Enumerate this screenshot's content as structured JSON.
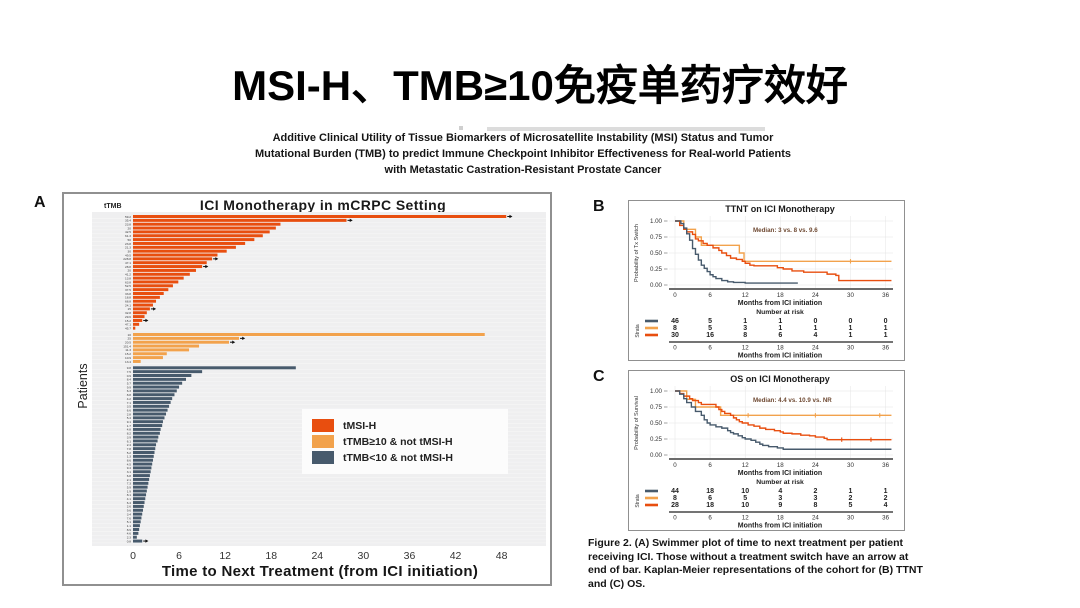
{
  "slide": {
    "title": "MSI-H、TMB≥10免疫单药疗效好"
  },
  "paper_title": {
    "lines": [
      "Additive Clinical Utility of Tissue Biomarkers of Microsatellite Instability (MSI) Status and Tumor",
      "Mutational Burden (TMB) to predict Immune Checkpoint Inhibitor Effectiveness for Real-world Patients",
      "with Metastatic Castration-Resistant Prostate Cancer"
    ]
  },
  "figure": {
    "panel_labels": [
      "A",
      "B",
      "C"
    ],
    "caption_label": "Figure 2.",
    "caption_text": " (A) Swimmer plot of time to next treatment per patient receiving ICI. Those without a treatment switch have an arrow at end of bar. Kaplan-Meier representations of the cohort for (B) TTNT and (C) OS."
  },
  "chart_data": [
    {
      "id": "swimmer",
      "type": "bar",
      "orientation": "horizontal",
      "title": "ICI Monotherapy in mCRPC Setting",
      "col_header": "tTMB",
      "xlabel": "Time to Next Treatment (from ICI initiation)",
      "ylabel": "Patients",
      "xlim": [
        0,
        50
      ],
      "xticks": [
        0,
        6,
        12,
        18,
        24,
        30,
        36,
        42,
        48
      ],
      "legend": [
        {
          "label": "tMSI-H",
          "color": "#E84E0F"
        },
        {
          "label": "tTMB≥10 & not tMSI-H",
          "color": "#F2A24C"
        },
        {
          "label": "tTMB<10 & not tMSI-H",
          "color": "#475A6C"
        }
      ],
      "groups": [
        {
          "name": "tMSI-H",
          "color": "#E84E0F",
          "values": [
            48.6,
            27.8,
            19.2,
            18.6,
            17.8,
            16.9,
            15.8,
            14.6,
            13.4,
            12.2,
            11.0,
            10.3,
            9.6,
            9.0,
            8.2,
            7.4,
            6.6,
            5.9,
            5.2,
            4.6,
            4.0,
            3.5,
            3.0,
            2.6,
            2.2,
            1.8,
            1.5,
            1.2,
            0.8,
            0.3
          ],
          "arrows": [
            0,
            1,
            11,
            13,
            24,
            27
          ]
        },
        {
          "name": "tTMB≥10 & not tMSI-H",
          "color": "#F2A24C",
          "values": [
            45.8,
            13.8,
            12.5,
            8.6,
            7.3,
            4.4,
            3.9,
            1.0
          ],
          "arrows": [
            1,
            2
          ]
        },
        {
          "name": "tTMB<10 & not tMSI-H",
          "color": "#475A6C",
          "values": [
            21.2,
            9.0,
            7.6,
            6.9,
            6.4,
            6.0,
            5.7,
            5.4,
            5.1,
            4.9,
            4.7,
            4.5,
            4.3,
            4.1,
            3.9,
            3.8,
            3.6,
            3.5,
            3.3,
            3.2,
            3.0,
            2.9,
            2.8,
            2.7,
            2.6,
            2.5,
            2.4,
            2.3,
            2.2,
            2.1,
            2.0,
            1.9,
            1.8,
            1.7,
            1.6,
            1.5,
            1.4,
            1.3,
            1.2,
            1.1,
            1.0,
            0.9,
            0.8,
            0.7,
            0.5,
            1.2
          ],
          "arrows": [
            45
          ]
        }
      ],
      "ttmb_labels": [
        "59.2",
        "35.4",
        "23.8",
        "20",
        "42.5",
        "61.3",
        "50",
        "23.8",
        "21.3",
        "30",
        "49.5",
        "228.8",
        "47.1",
        "28.8",
        "20",
        "41.2",
        "13.8",
        "63.8",
        "52.5",
        "37.5",
        "33.8",
        "18.8",
        "68.8",
        "24.1",
        "15",
        "32.8",
        "29.6",
        "15.2",
        "47.1",
        "45.7",
        "10",
        "25",
        "20.5",
        "151.4",
        "11.3",
        "15.2",
        "10.9",
        "13.4",
        "9.8",
        "7.5",
        "0.9",
        "8.4",
        "5.7",
        "9.9",
        "6.3",
        "8.8",
        "4.2",
        "7.1",
        "3.5",
        "6.6",
        "2.8",
        "5.4",
        "9.1",
        "1.7",
        "4.8",
        "8.2",
        "3.9",
        "6.1",
        "2.4",
        "7.8",
        "5.2",
        "1.3",
        "8.6",
        "4.5",
        "9.4",
        "3.1",
        "6.8",
        "2.1",
        "7.3",
        "5.9",
        "1.9",
        "8.1",
        "4.1",
        "6.4",
        "2.6",
        "9.6",
        "3.4",
        "7.6",
        "5.1",
        "1.1",
        "8.9",
        "4.6",
        "2.3",
        "0.8"
      ]
    },
    {
      "id": "ttnt-km",
      "type": "line",
      "title": "TTNT on ICI Monotherapy",
      "ylabel": "Probability of Tx Switch",
      "xlabel": "Months from ICI initiation",
      "annotation": "Median: 3 vs. 8 vs. 9.6",
      "yticks": [
        "1.00",
        "0.75",
        "0.50",
        "0.25",
        "0.00"
      ],
      "xticks": [
        0,
        6,
        12,
        18,
        24,
        30,
        36
      ],
      "series": [
        {
          "name": "tTMB≥10 & not tMSI-H",
          "color": "#F2A24C",
          "points": [
            [
              0,
              1
            ],
            [
              1.5,
              0.87
            ],
            [
              3.5,
              0.75
            ],
            [
              4.5,
              0.62
            ],
            [
              11,
              0.5
            ],
            [
              11.8,
              0.37
            ],
            [
              37,
              0.37
            ]
          ],
          "censors": [
            [
              30,
              0.37
            ]
          ]
        },
        {
          "name": "tMSI-H",
          "color": "#E84E0F",
          "points": [
            [
              0,
              1
            ],
            [
              0.8,
              0.93
            ],
            [
              1.5,
              0.87
            ],
            [
              2,
              0.83
            ],
            [
              3,
              0.79
            ],
            [
              3.5,
              0.72
            ],
            [
              4,
              0.69
            ],
            [
              4.8,
              0.65
            ],
            [
              5.5,
              0.62
            ],
            [
              6.5,
              0.58
            ],
            [
              7.5,
              0.54
            ],
            [
              8,
              0.5
            ],
            [
              8.8,
              0.46
            ],
            [
              9.5,
              0.42
            ],
            [
              10.5,
              0.4
            ],
            [
              11.5,
              0.37
            ],
            [
              12,
              0.34
            ],
            [
              12.8,
              0.31
            ],
            [
              13.5,
              0.3
            ],
            [
              17.5,
              0.27
            ],
            [
              18.5,
              0.25
            ],
            [
              20,
              0.22
            ],
            [
              22,
              0.2
            ],
            [
              26,
              0.17
            ],
            [
              27.5,
              0.15
            ],
            [
              28,
              0.07
            ],
            [
              37,
              0.07
            ]
          ],
          "censors": []
        },
        {
          "name": "tTMB<10 & not tMSI-H",
          "color": "#475A6C",
          "points": [
            [
              0,
              1
            ],
            [
              1,
              0.96
            ],
            [
              1.5,
              0.89
            ],
            [
              2,
              0.8
            ],
            [
              2.5,
              0.7
            ],
            [
              3,
              0.57
            ],
            [
              3.5,
              0.48
            ],
            [
              4,
              0.39
            ],
            [
              4.5,
              0.31
            ],
            [
              5,
              0.26
            ],
            [
              5.5,
              0.21
            ],
            [
              6,
              0.16
            ],
            [
              6.5,
              0.13
            ],
            [
              7,
              0.1
            ],
            [
              8,
              0.07
            ],
            [
              9,
              0.05
            ],
            [
              10,
              0.04
            ],
            [
              12,
              0.03
            ],
            [
              21,
              0.03
            ]
          ],
          "censors": []
        }
      ],
      "risk_table": {
        "header": "Number at risk",
        "strata_label": "Strata",
        "ticks": [
          0,
          6,
          12,
          18,
          24,
          30,
          36
        ],
        "rows": [
          {
            "color": "#475A6C",
            "values": [
              46,
              5,
              1,
              1,
              0,
              0,
              0
            ]
          },
          {
            "color": "#F2A24C",
            "values": [
              8,
              5,
              3,
              1,
              1,
              1,
              1
            ]
          },
          {
            "color": "#E84E0F",
            "values": [
              30,
              16,
              8,
              6,
              4,
              1,
              1
            ]
          }
        ]
      }
    },
    {
      "id": "os-km",
      "type": "line",
      "title": "OS on ICI Monotherapy",
      "ylabel": "Probability of Survival",
      "xlabel": "Months from ICI initiation",
      "annotation": "Median: 4.4 vs. 10.9 vs. NR",
      "yticks": [
        "1.00",
        "0.75",
        "0.50",
        "0.25",
        "0.00"
      ],
      "xticks": [
        0,
        6,
        12,
        18,
        24,
        30,
        36
      ],
      "series": [
        {
          "name": "tTMB≥10 & not tMSI-H",
          "color": "#F2A24C",
          "points": [
            [
              0,
              1
            ],
            [
              2,
              0.87
            ],
            [
              3.5,
              0.75
            ],
            [
              7.8,
              0.62
            ],
            [
              37,
              0.62
            ]
          ],
          "censors": [
            [
              12.5,
              0.62
            ],
            [
              24,
              0.62
            ],
            [
              35,
              0.62
            ]
          ]
        },
        {
          "name": "tMSI-H",
          "color": "#E84E0F",
          "points": [
            [
              0,
              1
            ],
            [
              0.8,
              0.96
            ],
            [
              1.5,
              0.92
            ],
            [
              2.5,
              0.88
            ],
            [
              3,
              0.85
            ],
            [
              4,
              0.82
            ],
            [
              4.5,
              0.79
            ],
            [
              7,
              0.75
            ],
            [
              7.5,
              0.71
            ],
            [
              8,
              0.68
            ],
            [
              8.5,
              0.65
            ],
            [
              9.5,
              0.62
            ],
            [
              10,
              0.58
            ],
            [
              10.5,
              0.55
            ],
            [
              11,
              0.52
            ],
            [
              11.5,
              0.5
            ],
            [
              12.5,
              0.47
            ],
            [
              13.5,
              0.45
            ],
            [
              14.5,
              0.42
            ],
            [
              15.5,
              0.4
            ],
            [
              17,
              0.38
            ],
            [
              18,
              0.36
            ],
            [
              18.5,
              0.34
            ],
            [
              20,
              0.33
            ],
            [
              21.5,
              0.31
            ],
            [
              23,
              0.3
            ],
            [
              24,
              0.28
            ],
            [
              25.5,
              0.26
            ],
            [
              26,
              0.24
            ],
            [
              37,
              0.24
            ]
          ],
          "censors": [
            [
              28.5,
              0.24
            ],
            [
              33.5,
              0.24
            ]
          ]
        },
        {
          "name": "tTMB<10 & not tMSI-H",
          "color": "#475A6C",
          "points": [
            [
              0,
              1
            ],
            [
              0.8,
              0.95
            ],
            [
              1.5,
              0.88
            ],
            [
              2,
              0.82
            ],
            [
              2.8,
              0.75
            ],
            [
              3.5,
              0.68
            ],
            [
              4.5,
              0.62
            ],
            [
              5,
              0.55
            ],
            [
              5.5,
              0.5
            ],
            [
              6,
              0.47
            ],
            [
              7,
              0.44
            ],
            [
              8,
              0.42
            ],
            [
              9,
              0.38
            ],
            [
              9.5,
              0.35
            ],
            [
              10,
              0.33
            ],
            [
              10.8,
              0.3
            ],
            [
              11.5,
              0.27
            ],
            [
              12,
              0.25
            ],
            [
              13,
              0.23
            ],
            [
              13.8,
              0.2
            ],
            [
              14.5,
              0.17
            ],
            [
              15,
              0.15
            ],
            [
              16,
              0.13
            ],
            [
              17.5,
              0.11
            ],
            [
              18.5,
              0.09
            ],
            [
              37,
              0.09
            ]
          ],
          "censors": []
        }
      ],
      "risk_table": {
        "header": "Number at risk",
        "strata_label": "Strata",
        "ticks": [
          0,
          6,
          12,
          18,
          24,
          30,
          36
        ],
        "rows": [
          {
            "color": "#475A6C",
            "values": [
              44,
              18,
              10,
              4,
              2,
              1,
              1
            ]
          },
          {
            "color": "#F2A24C",
            "values": [
              8,
              6,
              5,
              3,
              3,
              2,
              2
            ]
          },
          {
            "color": "#E84E0F",
            "values": [
              28,
              18,
              10,
              9,
              8,
              5,
              4
            ]
          }
        ]
      }
    }
  ]
}
